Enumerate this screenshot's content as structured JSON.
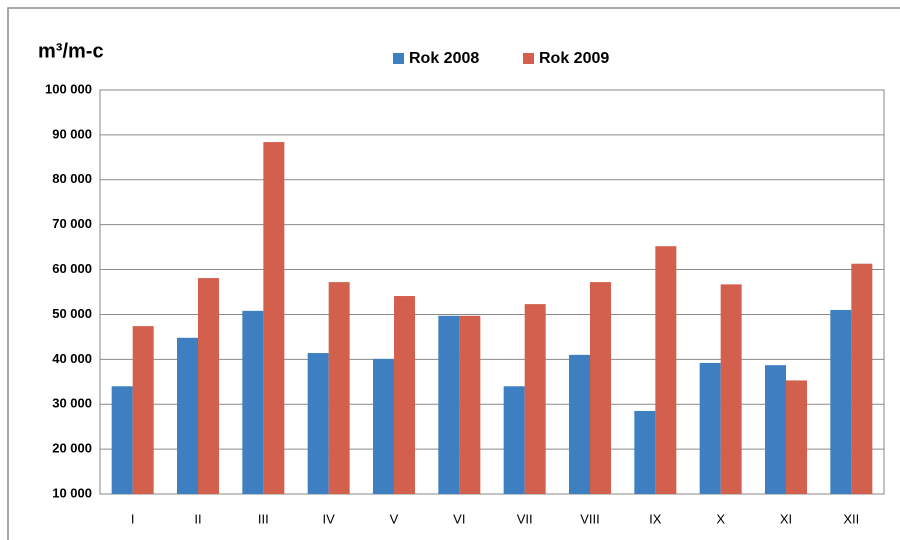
{
  "chart_data": {
    "type": "bar",
    "title": "m³/m-c",
    "categories": [
      "I",
      "II",
      "III",
      "IV",
      "V",
      "VI",
      "VII",
      "VIII",
      "IX",
      "X",
      "XI",
      "XII"
    ],
    "series": [
      {
        "name": "Rok 2008",
        "color": "#3d7fc1",
        "values": [
          34000,
          44800,
          50800,
          41400,
          40100,
          49700,
          34000,
          41000,
          28500,
          39200,
          38700,
          51000
        ]
      },
      {
        "name": "Rok 2009",
        "color": "#d35f4d",
        "values": [
          47400,
          58100,
          88400,
          57200,
          54100,
          49700,
          52300,
          57200,
          65200,
          56700,
          35300,
          61300
        ]
      }
    ],
    "ylim": [
      10000,
      100000
    ],
    "yticks": [
      {
        "value": 10000,
        "label": "10 000"
      },
      {
        "value": 20000,
        "label": "20 000"
      },
      {
        "value": 30000,
        "label": "30 000"
      },
      {
        "value": 40000,
        "label": "40 000"
      },
      {
        "value": 50000,
        "label": "50 000"
      },
      {
        "value": 60000,
        "label": "60 000"
      },
      {
        "value": 70000,
        "label": "70 000"
      },
      {
        "value": 80000,
        "label": "80 000"
      },
      {
        "value": 90000,
        "label": "90 000"
      },
      {
        "value": 100000,
        "label": "100 000"
      }
    ],
    "grid": true
  }
}
